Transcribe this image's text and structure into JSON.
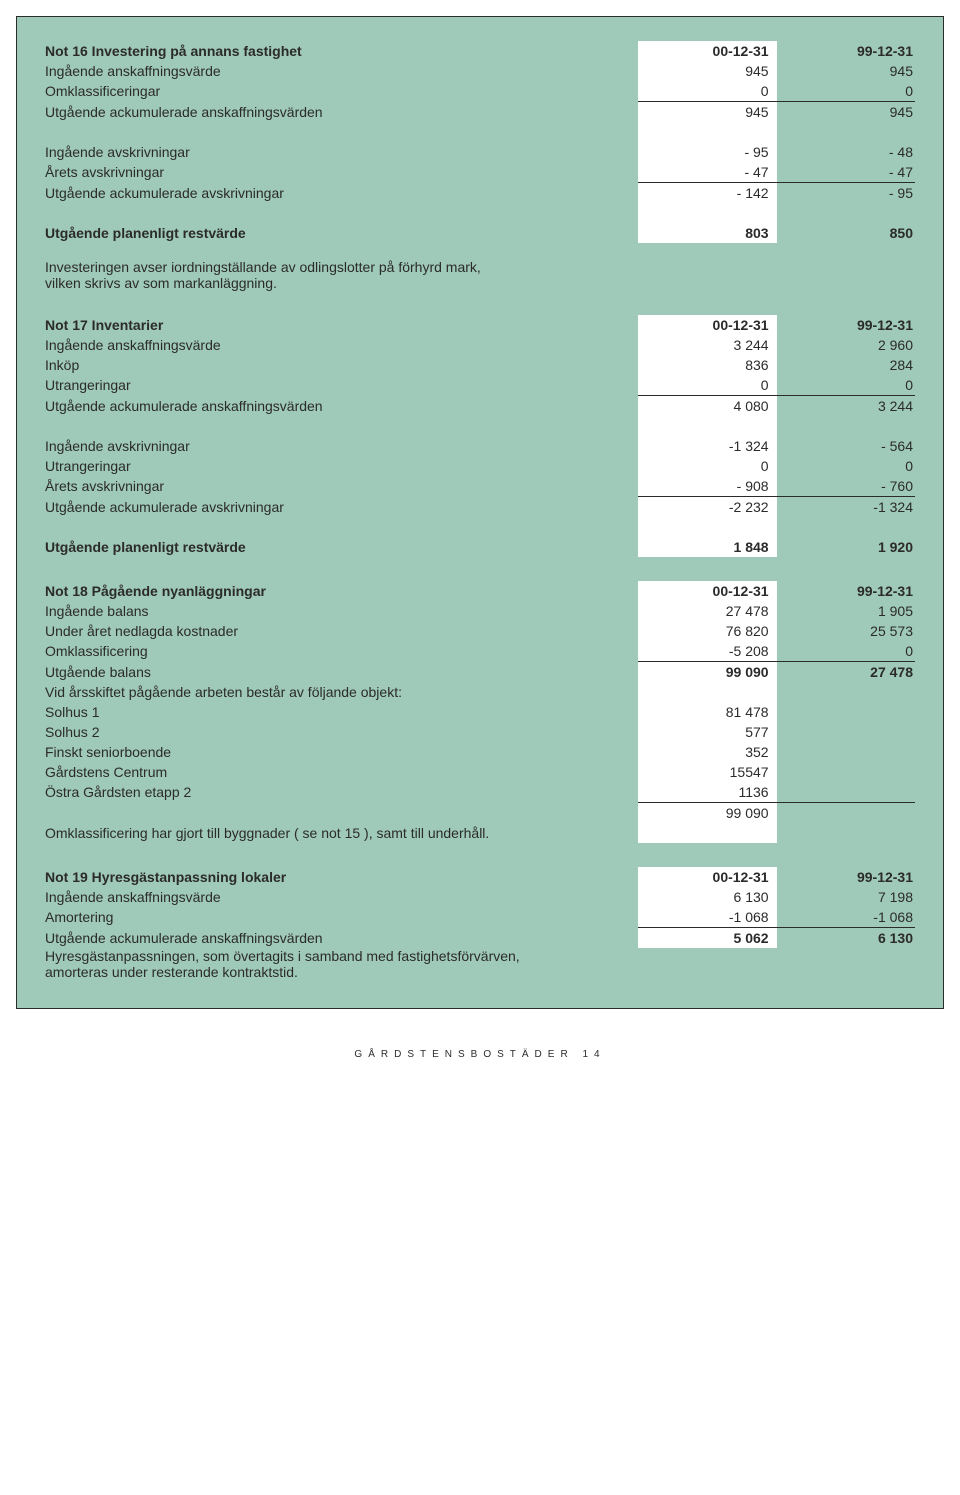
{
  "page": {
    "background": "#9fc9b8",
    "highlight_col_bg": "#ffffff",
    "rule_color": "#2b2b2b",
    "font_family": "Gill Sans",
    "body_fontsize_pt": 11,
    "footer_text": "GÅRDSTENSBOSTÄDER 14"
  },
  "not16": {
    "title": "Not 16 Investering på annans fastighet",
    "col1_header": "00-12-31",
    "col2_header": "99-12-31",
    "rows": [
      {
        "label": "Ingående anskaffningsvärde",
        "c1": "945",
        "c2": "945"
      },
      {
        "label": "Omklassificeringar",
        "c1": "0",
        "c2": "0"
      },
      {
        "label": "Utgående ackumulerade anskaffningsvärden",
        "c1": "945",
        "c2": "945",
        "rule": true
      },
      {
        "gap": true
      },
      {
        "label": "Ingående avskrivningar",
        "c1": "- 95",
        "c2": "- 48"
      },
      {
        "label": "Årets avskrivningar",
        "c1": "- 47",
        "c2": "- 47"
      },
      {
        "label": "Utgående ackumulerade avskrivningar",
        "c1": "- 142",
        "c2": "- 95",
        "rule": true
      },
      {
        "gap": true
      },
      {
        "label": "Utgående planenligt restvärde",
        "c1": "803",
        "c2": "850",
        "bold": true
      }
    ],
    "note_lines": [
      "Investeringen avser iordningställande av odlingslotter på förhyrd mark,",
      "vilken skrivs av som markanläggning."
    ]
  },
  "not17": {
    "title": "Not 17 Inventarier",
    "col1_header": "00-12-31",
    "col2_header": "99-12-31",
    "rows": [
      {
        "label": "Ingående anskaffningsvärde",
        "c1": "3 244",
        "c2": "2 960"
      },
      {
        "label": "Inköp",
        "c1": "836",
        "c2": "284"
      },
      {
        "label": "Utrangeringar",
        "c1": "0",
        "c2": "0"
      },
      {
        "label": "Utgående ackumulerade anskaffningsvärden",
        "c1": "4 080",
        "c2": "3 244",
        "rule": true
      },
      {
        "gap": true
      },
      {
        "label": "Ingående avskrivningar",
        "c1": "-1 324",
        "c2": "- 564"
      },
      {
        "label": "Utrangeringar",
        "c1": "0",
        "c2": "0"
      },
      {
        "label": "Årets avskrivningar",
        "c1": "- 908",
        "c2": "- 760"
      },
      {
        "label": "Utgående ackumulerade avskrivningar",
        "c1": "-2 232",
        "c2": "-1 324",
        "rule": true
      },
      {
        "gap": true
      },
      {
        "label": "Utgående planenligt restvärde",
        "c1": "1 848",
        "c2": "1 920",
        "bold": true
      }
    ]
  },
  "not18": {
    "title": "Not 18  Pågående nyanläggningar",
    "col1_header": "00-12-31",
    "col2_header": "99-12-31",
    "rows": [
      {
        "label": "Ingående balans",
        "c1": "27 478",
        "c2": "1 905"
      },
      {
        "label": "Under året nedlagda kostnader",
        "c1": "76 820",
        "c2": "25 573"
      },
      {
        "label": "Omklassificering",
        "c1": "-5 208",
        "c2": "0"
      },
      {
        "label": "Utgående balans",
        "c1": "99 090",
        "c2": "27 478",
        "rule": true,
        "bold_vals": true
      },
      {
        "label": "Vid årsskiftet pågående arbeten består av följande objekt:",
        "c1": "",
        "c2": ""
      },
      {
        "label": "Solhus 1",
        "c1": "81 478",
        "c2": ""
      },
      {
        "label": "Solhus 2",
        "c1": "577",
        "c2": ""
      },
      {
        "label": "Finskt seniorboende",
        "c1": "352",
        "c2": ""
      },
      {
        "label": "Gårdstens Centrum",
        "c1": "15547",
        "c2": ""
      },
      {
        "label": "Östra Gårdsten etapp 2",
        "c1": "1136",
        "c2": ""
      },
      {
        "label": "",
        "c1": "99 090",
        "c2": "",
        "rule": true
      },
      {
        "label": "Omklassificering har gjort till byggnader ( se not 15 ), samt till underhåll.",
        "c1": "",
        "c2": ""
      }
    ]
  },
  "not19": {
    "title": "Not 19 Hyresgästanpassning lokaler",
    "col1_header": "00-12-31",
    "col2_header": "99-12-31",
    "rows": [
      {
        "label": "Ingående anskaffningsvärde",
        "c1": "6 130",
        "c2": "7 198"
      },
      {
        "label": "Amortering",
        "c1": "-1 068",
        "c2": "-1 068"
      },
      {
        "label": "Utgående ackumulerade anskaffningsvärden",
        "c1": "5 062",
        "c2": "6 130",
        "rule": true,
        "bold_vals": true
      }
    ],
    "note_lines": [
      "Hyresgästanpassningen, som övertagits i samband med fastighetsförvärven,",
      "amorteras under resterande kontraktstid."
    ]
  }
}
